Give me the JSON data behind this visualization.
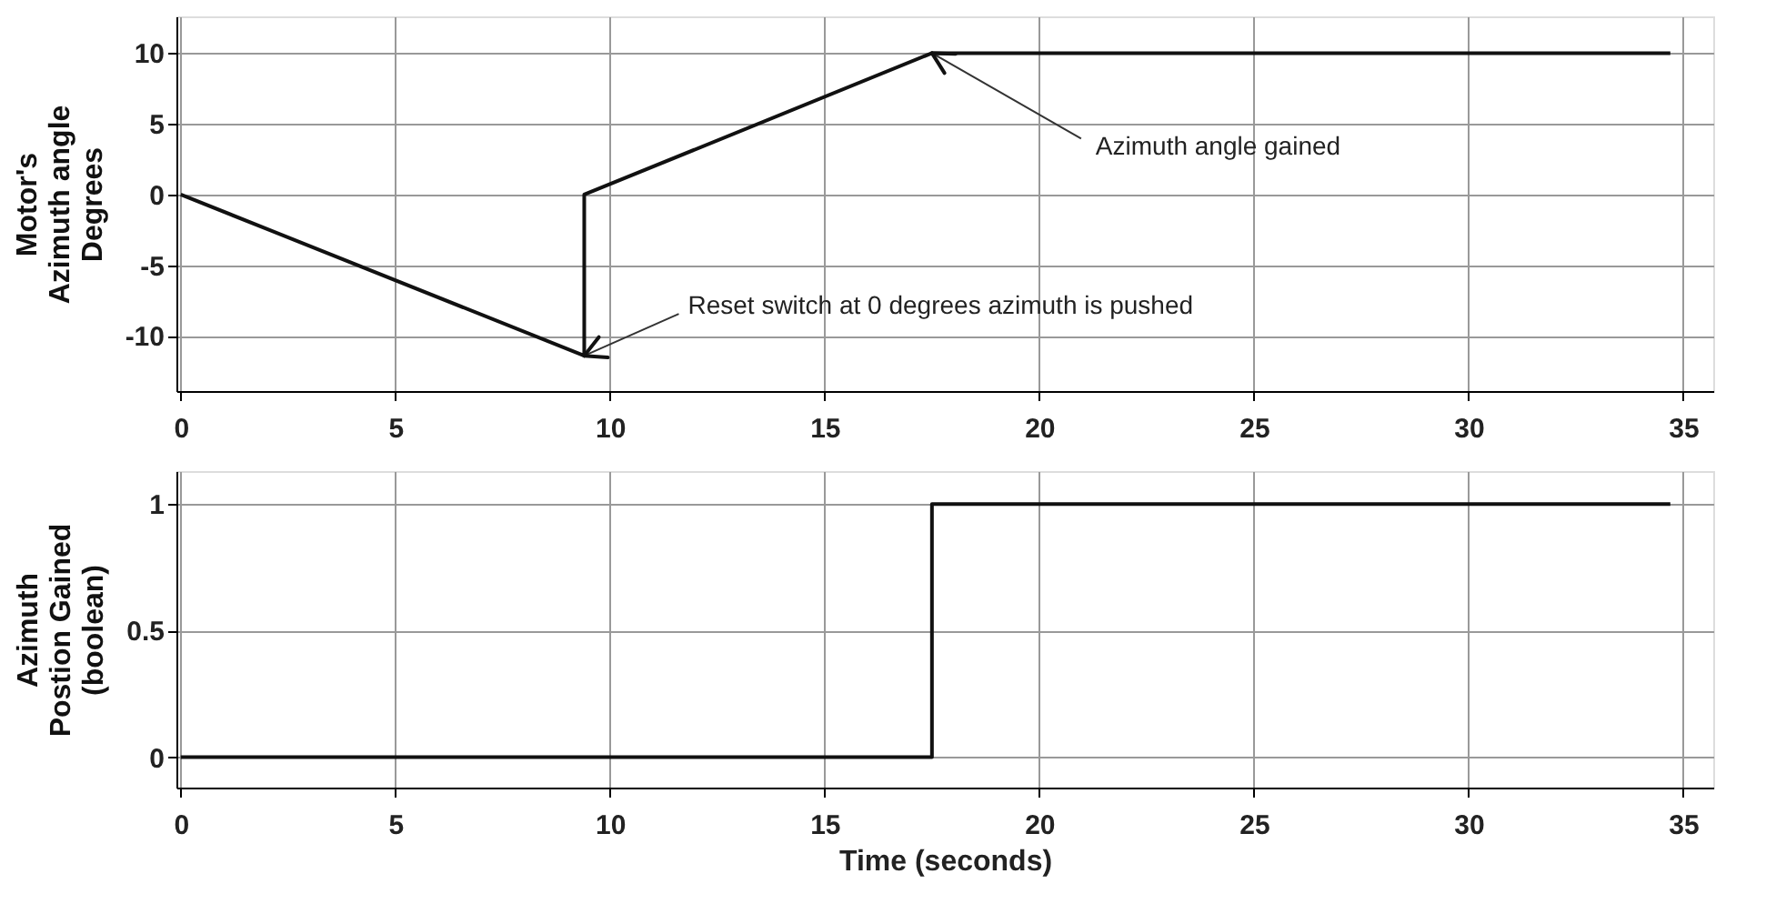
{
  "chart_data": [
    {
      "type": "line",
      "ylabel": "Motor's\nAzimuth angle\nDegrees",
      "x": [
        0,
        9.4,
        9.4,
        17.5,
        34.7
      ],
      "series": [
        {
          "color": "#111111",
          "values": [
            0,
            -11.4,
            0,
            10,
            10
          ]
        }
      ],
      "xlim": [
        -0.1,
        35.7
      ],
      "xticks": [
        0,
        5,
        10,
        15,
        20,
        25,
        30,
        35
      ],
      "ylim": [
        -13.9,
        12.6
      ],
      "yticks": [
        -10,
        -5,
        0,
        5,
        10
      ],
      "grid": true,
      "annotations": [
        {
          "text": "Reset switch at 0 degrees azimuth is pushed",
          "x": 9.4,
          "y": -11.4
        },
        {
          "text": "Azimuth angle gained",
          "x": 17.5,
          "y": 10
        }
      ]
    },
    {
      "type": "step",
      "ylabel": "Azimuth\nPostion Gained\n(boolean)",
      "xlabel": "Time (seconds)",
      "x": [
        0,
        17.5,
        34.7
      ],
      "series": [
        {
          "color": "#111111",
          "values": [
            0,
            1,
            1
          ]
        }
      ],
      "xlim": [
        -0.1,
        35.7
      ],
      "xticks": [
        0,
        5,
        10,
        15,
        20,
        25,
        30,
        35
      ],
      "ylim": [
        -0.12,
        1.13
      ],
      "yticks": [
        0,
        0.5,
        1
      ],
      "grid": true
    }
  ]
}
